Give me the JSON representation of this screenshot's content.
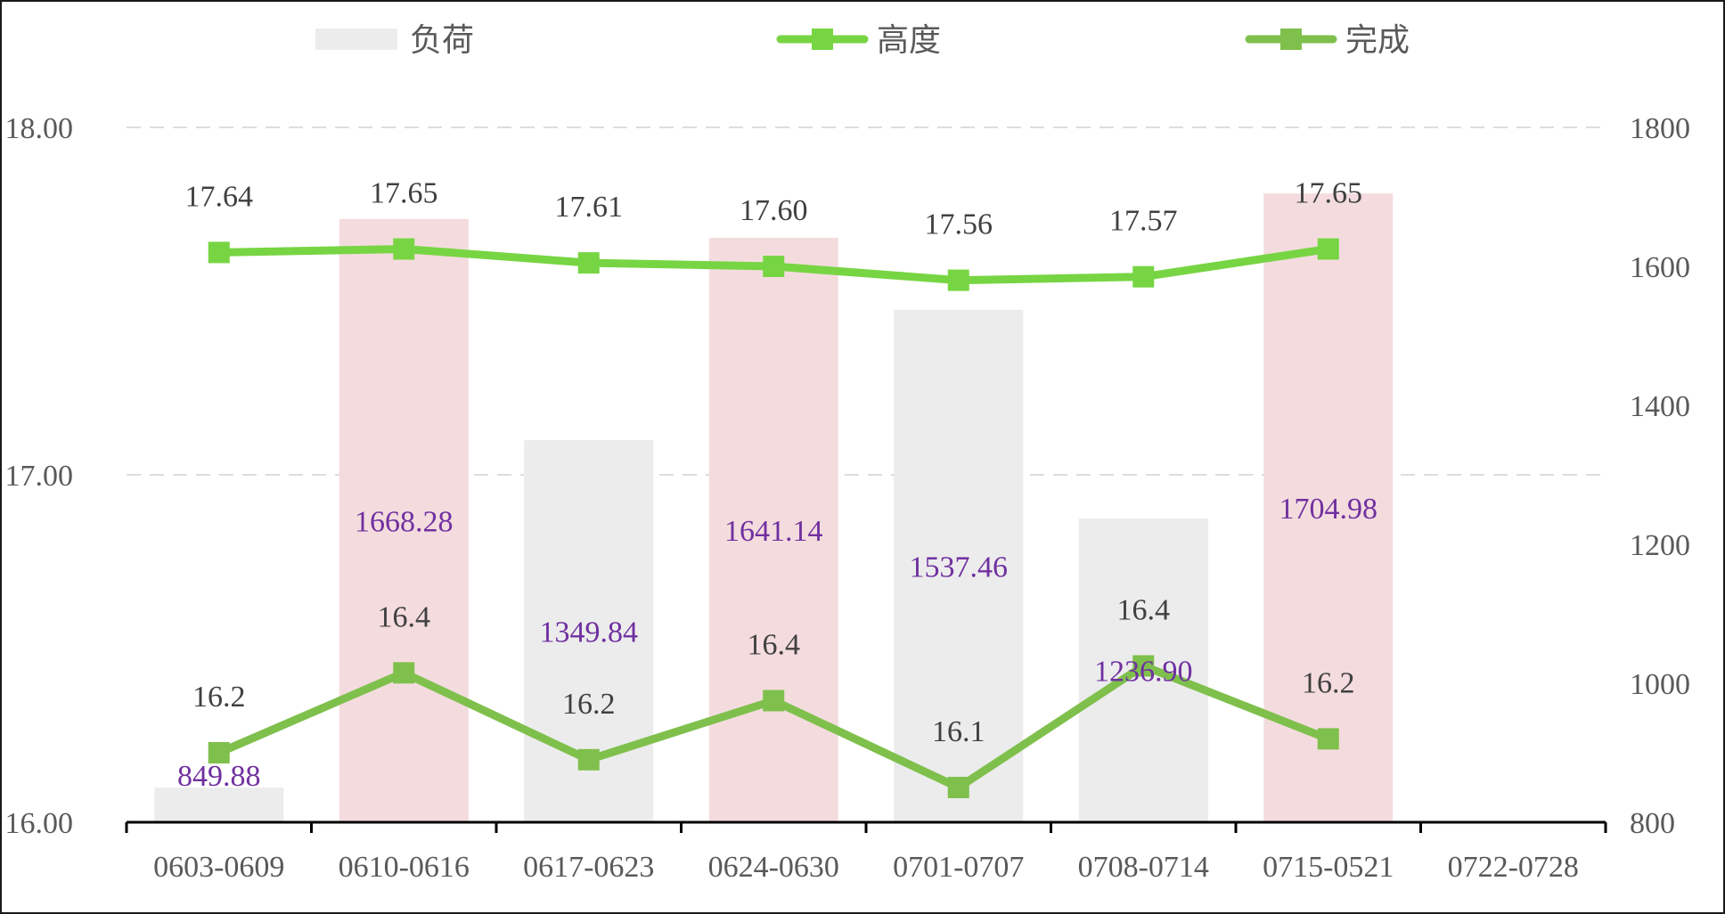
{
  "chart_data": {
    "type": "bar",
    "categories": [
      "0603-0609",
      "0610-0616",
      "0617-0623",
      "0624-0630",
      "0701-0707",
      "0708-0714",
      "0715-0521",
      "0722-0728"
    ],
    "legend_position": "top",
    "grid": true,
    "y_left": {
      "ylim": [
        16.0,
        18.0
      ],
      "ticks": [
        "16.00",
        "17.00",
        "18.00"
      ]
    },
    "y_right": {
      "ylim": [
        800,
        1800
      ],
      "ticks": [
        "800",
        "1000",
        "1200",
        "1400",
        "1600",
        "1800"
      ]
    },
    "series": [
      {
        "name": "负荷",
        "type": "bar",
        "axis": "right",
        "values": [
          849.88,
          1668.28,
          1349.84,
          1641.14,
          1537.46,
          1236.9,
          1704.98,
          null
        ],
        "labels": [
          "849.88",
          "1668.28",
          "1349.84",
          "1641.14",
          "1537.46",
          "1236.90",
          "1704.98",
          ""
        ],
        "bar_colors": [
          "#ececec",
          "#f4dcde",
          "#ececec",
          "#f4dcde",
          "#ececec",
          "#ececec",
          "#f4dcde",
          ""
        ],
        "legend_color": "#ececec",
        "label_color": "#7030a0"
      },
      {
        "name": "高度",
        "type": "line",
        "axis": "left",
        "values": [
          17.64,
          17.65,
          17.61,
          17.6,
          17.56,
          17.57,
          17.65,
          null
        ],
        "labels": [
          "17.64",
          "17.65",
          "17.61",
          "17.60",
          "17.56",
          "17.57",
          "17.65",
          ""
        ],
        "color": "#77d543"
      },
      {
        "name": "完成",
        "type": "line",
        "axis": "left",
        "values": [
          16.2,
          16.43,
          16.18,
          16.35,
          16.1,
          16.45,
          16.24,
          null
        ],
        "labels": [
          "16.2",
          "16.4",
          "16.2",
          "16.4",
          "16.1",
          "16.4",
          "16.2",
          ""
        ],
        "color": "#7fc04c"
      }
    ]
  }
}
